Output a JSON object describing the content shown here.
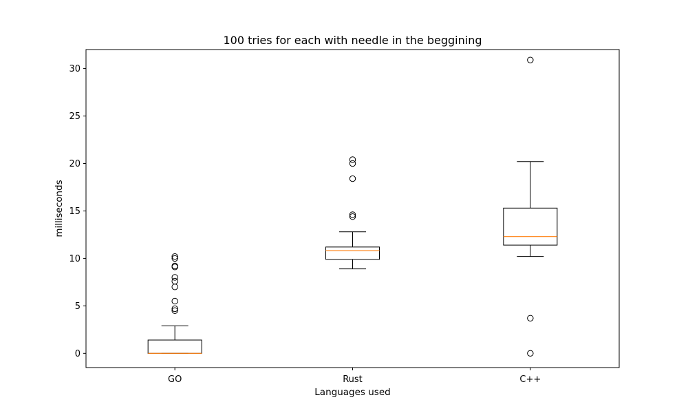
{
  "chart_data": {
    "type": "box",
    "title": "100 tries for each with needle in the beggining",
    "xlabel": "Languages used",
    "ylabel": "milliseconds",
    "ylim": [
      -1.5,
      32.0
    ],
    "yticks": [
      0,
      5,
      10,
      15,
      20,
      25,
      30
    ],
    "grid": false,
    "categories": [
      "GO",
      "Rust",
      "C++"
    ],
    "boxes": [
      {
        "label": "GO",
        "whisker_low": 0.0,
        "q1": 0.0,
        "median": 0.0,
        "q3": 1.4,
        "whisker_high": 2.9,
        "outliers": [
          4.5,
          4.7,
          5.5,
          7.0,
          7.6,
          8.0,
          9.1,
          9.2,
          10.0,
          10.2
        ]
      },
      {
        "label": "Rust",
        "whisker_low": 8.9,
        "q1": 9.9,
        "median": 10.8,
        "q3": 11.2,
        "whisker_high": 12.8,
        "outliers": [
          14.4,
          14.6,
          18.4,
          20.0,
          20.4
        ]
      },
      {
        "label": "C++",
        "whisker_low": 10.2,
        "q1": 11.4,
        "median": 12.3,
        "q3": 15.3,
        "whisker_high": 20.2,
        "outliers": [
          0.0,
          3.7,
          30.9
        ]
      }
    ],
    "colors": {
      "box": "#000000",
      "median": "#ff7f0e",
      "outlier": "#000000"
    }
  }
}
